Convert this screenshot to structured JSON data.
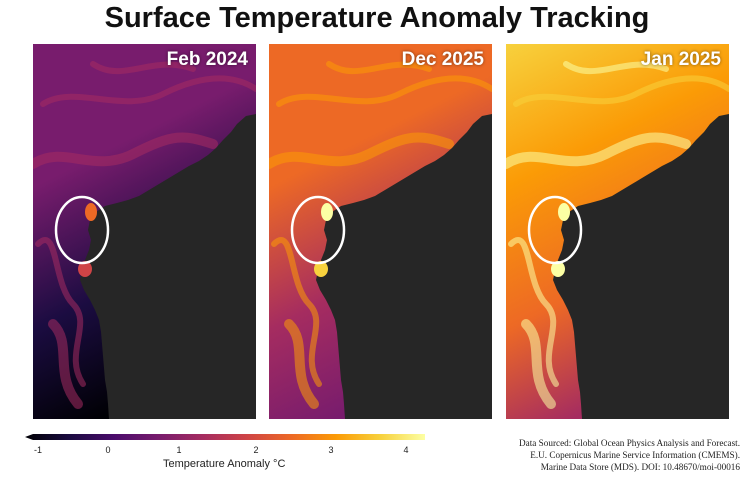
{
  "title": "Surface Temperature Anomaly Tracking",
  "panels": [
    {
      "label": "Feb 2024",
      "intensity": 0.28
    },
    {
      "label": "Dec 2025",
      "intensity": 0.62
    },
    {
      "label": "Jan 2025",
      "intensity": 0.82
    }
  ],
  "colorbar": {
    "label": "Temperature Anomaly °C",
    "ticks": [
      "-1",
      "0",
      "1",
      "2",
      "3",
      "4"
    ],
    "range": [
      -1.2,
      4.2
    ],
    "colors": [
      "#000004",
      "#1b0c41",
      "#4a0c6b",
      "#781c6d",
      "#a52c60",
      "#cf4446",
      "#ed6925",
      "#fb9b06",
      "#f7d13d",
      "#fcffa4"
    ]
  },
  "land_color": "#262626",
  "marker_color": "#ffffff",
  "source": {
    "line1": "Data Sourced: Global Ocean Physics Analysis and Forecast.",
    "line2": "E.U. Copernicus Marine Service Information (CMEMS).",
    "line3": "Marine Data Store (MDS). DOI: 10.48670/moi-00016"
  }
}
